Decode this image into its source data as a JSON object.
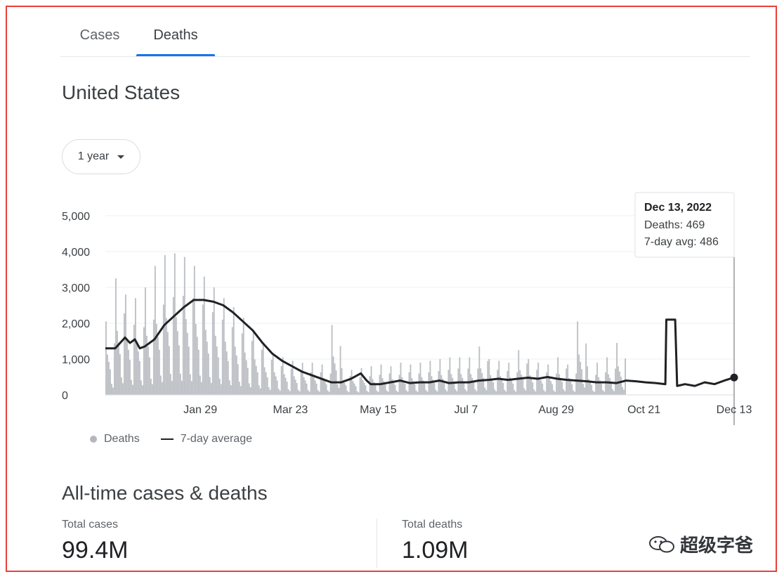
{
  "tabs": [
    {
      "label": "Cases",
      "active": false
    },
    {
      "label": "Deaths",
      "active": true
    }
  ],
  "region": "United States",
  "range_selector": {
    "label": "1 year"
  },
  "legend": {
    "deaths": "Deaths",
    "avg": "7-day average"
  },
  "tooltip": {
    "date": "Dec 13, 2022",
    "deaths_text": "Deaths: 469",
    "avg_text": "7-day avg: 486"
  },
  "all_time": {
    "title": "All-time cases & deaths",
    "total_cases_label": "Total cases",
    "total_cases_value": "99.4M",
    "total_deaths_label": "Total deaths",
    "total_deaths_value": "1.09M"
  },
  "watermark": "超级字爸",
  "colors": {
    "bar": "#b4b7bc",
    "line": "#202124",
    "accent": "#1a73e8",
    "frame": "#e8413b"
  },
  "chart_data": {
    "type": "bar",
    "title": "",
    "xlabel": "",
    "ylabel": "",
    "ylim": [
      0,
      5000
    ],
    "y_ticks": [
      0,
      1000,
      2000,
      3000,
      4000,
      5000
    ],
    "y_tick_labels": [
      "0",
      "1,000",
      "2,000",
      "3,000",
      "4,000",
      "5,000"
    ],
    "x_tick_labels": [
      "Jan 29",
      "Mar 23",
      "May 15",
      "Jul 7",
      "Aug 29",
      "Oct 21",
      "Dec 13"
    ],
    "x_ticks_week": [
      8,
      15.6,
      23,
      30.4,
      38,
      45.4,
      53
    ],
    "grid": true,
    "legend_position": "bottom-left",
    "series": [
      {
        "name": "Deaths",
        "kind": "bar",
        "weekly_peaks": [
          2050,
          3250,
          2800,
          2700,
          3000,
          3600,
          3900,
          3950,
          3850,
          3600,
          3300,
          3000,
          2700,
          2450,
          2150,
          1800,
          1400,
          1150,
          1050,
          950,
          900,
          900,
          850,
          1950,
          750,
          700,
          750,
          800,
          850,
          800,
          900,
          850,
          900,
          950,
          1000,
          1050,
          1050,
          1050,
          1350,
          1000,
          950,
          900,
          1250,
          1000,
          900,
          850,
          1050,
          850,
          2050,
          800,
          900,
          1050,
          1450
        ]
      },
      {
        "name": "7-day average",
        "kind": "line",
        "points": [
          [
            0,
            1300
          ],
          [
            1,
            1300
          ],
          [
            2,
            1600
          ],
          [
            2.5,
            1450
          ],
          [
            3,
            1550
          ],
          [
            3.5,
            1300
          ],
          [
            4,
            1350
          ],
          [
            5,
            1550
          ],
          [
            6,
            1950
          ],
          [
            7,
            2200
          ],
          [
            8,
            2450
          ],
          [
            9,
            2650
          ],
          [
            10,
            2650
          ],
          [
            11,
            2600
          ],
          [
            12,
            2500
          ],
          [
            13,
            2300
          ],
          [
            14,
            2050
          ],
          [
            15,
            1800
          ],
          [
            16,
            1450
          ],
          [
            17,
            1150
          ],
          [
            18,
            950
          ],
          [
            19,
            800
          ],
          [
            20,
            650
          ],
          [
            21,
            550
          ],
          [
            22,
            450
          ],
          [
            23,
            350
          ],
          [
            24,
            350
          ],
          [
            25,
            450
          ],
          [
            26,
            600
          ],
          [
            26.6,
            400
          ],
          [
            27,
            300
          ],
          [
            28,
            300
          ],
          [
            29,
            350
          ],
          [
            30,
            400
          ],
          [
            31,
            330
          ],
          [
            32,
            350
          ],
          [
            33,
            350
          ],
          [
            34,
            400
          ],
          [
            35,
            330
          ],
          [
            36,
            350
          ],
          [
            37,
            350
          ],
          [
            38,
            400
          ],
          [
            39,
            420
          ],
          [
            40,
            450
          ],
          [
            41,
            420
          ],
          [
            42,
            450
          ],
          [
            43,
            480
          ],
          [
            44,
            450
          ],
          [
            45,
            500
          ],
          [
            46,
            450
          ],
          [
            47,
            420
          ],
          [
            48,
            400
          ],
          [
            49,
            380
          ],
          [
            50,
            350
          ],
          [
            51,
            350
          ],
          [
            52,
            330
          ],
          [
            53,
            400
          ],
          [
            54,
            380
          ],
          [
            55,
            350
          ],
          [
            56,
            330
          ],
          [
            57,
            300
          ],
          [
            57.1,
            2100
          ],
          [
            58,
            2100
          ],
          [
            58.2,
            250
          ],
          [
            59,
            300
          ],
          [
            60,
            250
          ],
          [
            61,
            350
          ],
          [
            62,
            300
          ],
          [
            63,
            400
          ],
          [
            64,
            486
          ]
        ]
      }
    ],
    "highlight": {
      "date": "Dec 13, 2022",
      "deaths": 469,
      "avg": 486
    }
  }
}
